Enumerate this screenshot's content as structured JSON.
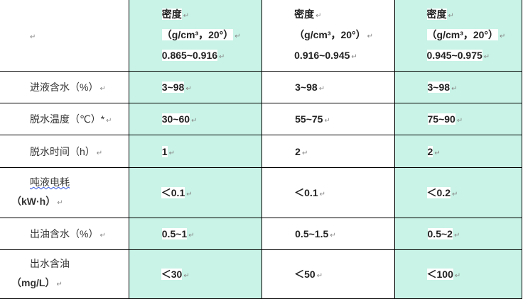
{
  "header": {
    "corner": "",
    "columns": [
      {
        "title": "密度",
        "unit": "（g/cm³，20°）",
        "range": "0.865~0.916"
      },
      {
        "title": "密度",
        "unit": "（g/cm³，20°）",
        "range": "0.916~0.945"
      },
      {
        "title": "密度",
        "unit": "（g/cm³，20°）",
        "range": "0.945~0.975"
      }
    ]
  },
  "rows": [
    {
      "label": "进液含水（%）",
      "label2": "",
      "values": [
        "3~98",
        "3~98",
        "3~98"
      ]
    },
    {
      "label": "脱水温度（℃）*",
      "label2": "",
      "values": [
        "30~60",
        "55~75",
        "75~90"
      ]
    },
    {
      "label": "脱水时间（h）",
      "label2": "",
      "values": [
        "1",
        "2",
        "2"
      ]
    },
    {
      "label": "吨液电耗",
      "label2": "（kW·h）",
      "values": [
        "＜0.1",
        "＜0.1",
        "＜0.2"
      ]
    },
    {
      "label": "出油含水（%）",
      "label2": "",
      "values": [
        "0.5~1",
        "0.5~1.5",
        "0.5~2"
      ]
    },
    {
      "label": "出水含油",
      "label2": "（mg/L）",
      "values": [
        "＜30",
        "＜50",
        "＜100"
      ]
    }
  ],
  "colors": {
    "highlight_column": "#c8f3e6",
    "border": "#000000"
  },
  "paragraph_mark": "↵"
}
